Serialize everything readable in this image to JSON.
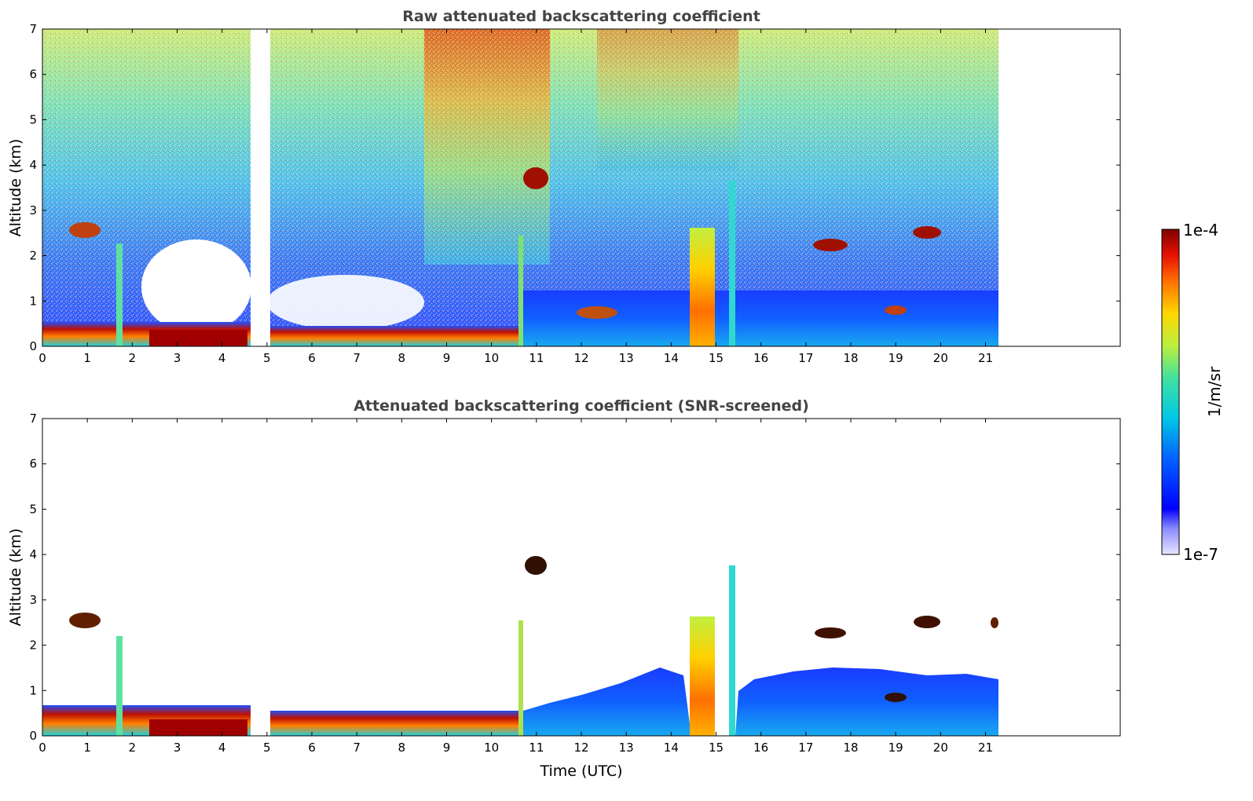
{
  "chart_data": [
    {
      "type": "heatmap",
      "title": "Raw attenuated backscattering coefficient",
      "xlabel": "",
      "ylabel": "Altitude (km)",
      "xlim": [
        0,
        24
      ],
      "ylim": [
        0,
        7
      ],
      "x_ticks": [
        "0",
        "1",
        "2",
        "3",
        "4",
        "5",
        "6",
        "7",
        "8",
        "9",
        "10",
        "11",
        "12",
        "13",
        "14",
        "15",
        "16",
        "17",
        "18",
        "19",
        "20",
        "21"
      ],
      "y_ticks": [
        "0",
        "1",
        "2",
        "3",
        "4",
        "5",
        "6",
        "7"
      ],
      "data_end_hour": 21.3,
      "data_gap_hours": [
        4.63,
        5.07
      ],
      "colorscale": "log jet 1e-7 to 1e-4",
      "layers": [
        {
          "feature": "near-surface aerosol/boundary layer",
          "x": [
            0,
            10.7
          ],
          "y": [
            0,
            0.5
          ],
          "value": "1e-4"
        },
        {
          "feature": "low cloud",
          "x": [
            10.7,
            21.3
          ],
          "y": [
            0,
            1.5
          ],
          "value": "1e-6"
        },
        {
          "feature": "precipitation",
          "x": [
            14.4,
            15.0
          ],
          "y": [
            0,
            2.4
          ],
          "value": "5e-5"
        },
        {
          "feature": "cloud",
          "x": [
            10.6,
            11.2
          ],
          "y": [
            3.3,
            4.1
          ],
          "value": "1e-4"
        },
        {
          "feature": "cloud",
          "x": [
            17.1,
            17.9
          ],
          "y": [
            2.0,
            2.5
          ],
          "value": "1e-4"
        },
        {
          "feature": "cloud",
          "x": [
            19.4,
            20.1
          ],
          "y": [
            2.3,
            2.7
          ],
          "value": "1e-4"
        }
      ]
    },
    {
      "type": "heatmap",
      "title": "Attenuated backscattering coefficient (SNR-screened)",
      "xlabel": "Time (UTC)",
      "ylabel": "Altitude (km)",
      "xlim": [
        0,
        24
      ],
      "ylim": [
        0,
        7
      ],
      "x_ticks": [
        "0",
        "1",
        "2",
        "3",
        "4",
        "5",
        "6",
        "7",
        "8",
        "9",
        "10",
        "11",
        "12",
        "13",
        "14",
        "15",
        "16",
        "17",
        "18",
        "19",
        "20",
        "21"
      ],
      "y_ticks": [
        "0",
        "1",
        "2",
        "3",
        "4",
        "5",
        "6",
        "7"
      ],
      "data_end_hour": 21.3,
      "data_gap_hours": [
        4.63,
        5.07
      ],
      "colorscale": "log jet 1e-7 to 1e-4",
      "layers": [
        {
          "feature": "boundary layer",
          "x": [
            0,
            10.7
          ],
          "y": [
            0,
            0.6
          ],
          "value": "1e-4"
        },
        {
          "feature": "low cloud",
          "x": [
            10.7,
            21.3
          ],
          "y": [
            0,
            1.4
          ],
          "value": "1e-6"
        },
        {
          "feature": "precipitation",
          "x": [
            14.4,
            15.0
          ],
          "y": [
            0,
            2.6
          ],
          "value": "5e-5"
        },
        {
          "feature": "cloud",
          "x": [
            10.6,
            11.2
          ],
          "y": [
            3.4,
            4.1
          ],
          "value": "1e-4"
        },
        {
          "feature": "cloud",
          "x": [
            19.4,
            20.1
          ],
          "y": [
            2.3,
            2.7
          ],
          "value": "1e-4"
        }
      ]
    }
  ],
  "colorbar": {
    "max_label": "1e-4",
    "min_label": "1e-7",
    "unit_label": "1/m/sr"
  }
}
